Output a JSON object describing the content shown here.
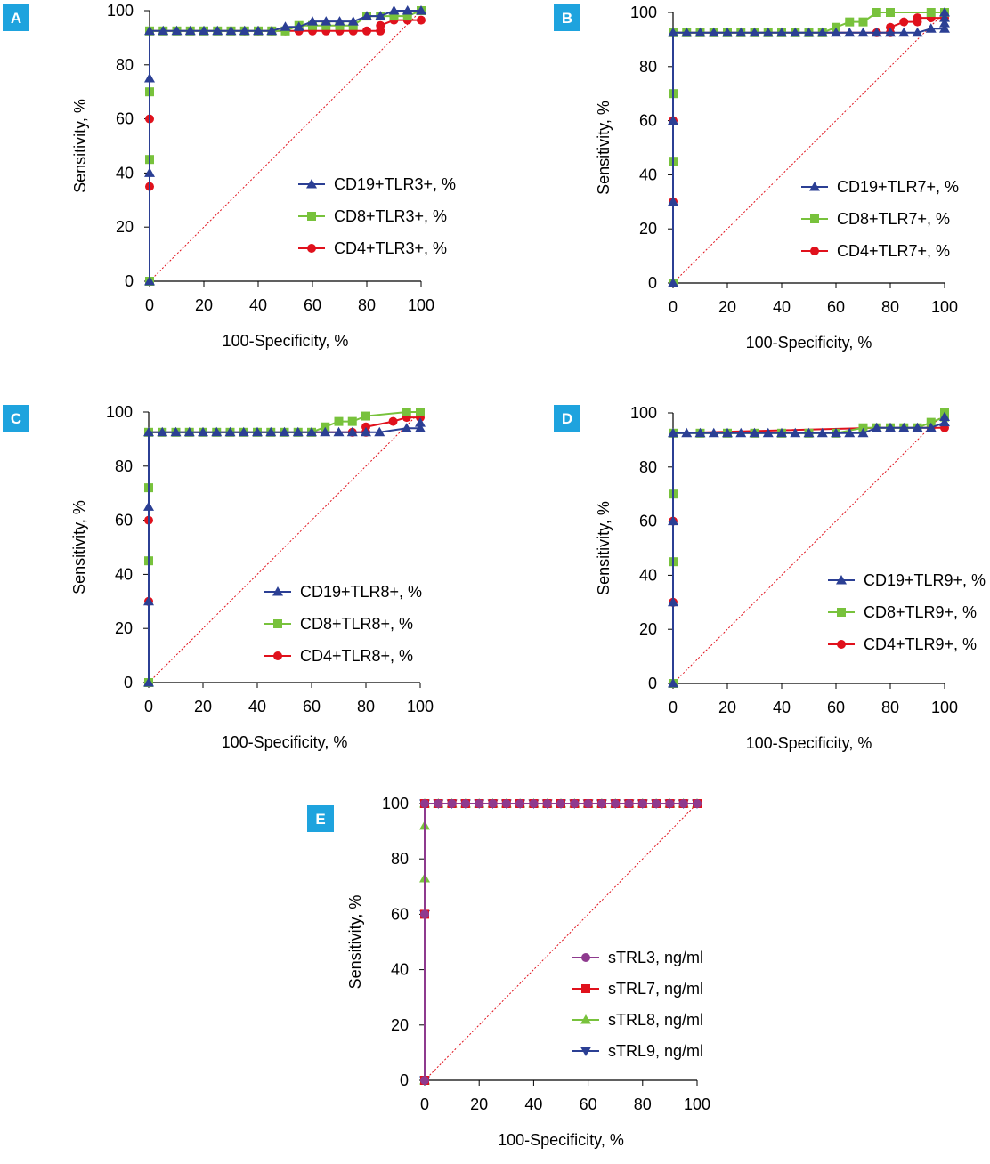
{
  "colors": {
    "blue": "#2b3f94",
    "green": "#78c23c",
    "red": "#e0111c",
    "purple": "#8e3a8e",
    "badge": "#1ea3de",
    "diagonal": "#e0111c"
  },
  "chart_data": [
    {
      "type": "line",
      "panel": "A",
      "xlabel": "100-Specificity, %",
      "ylabel": "Sensitivity, %",
      "xlim": [
        0,
        100
      ],
      "ylim": [
        0,
        100
      ],
      "xticks": [
        0,
        20,
        40,
        60,
        80,
        100
      ],
      "yticks": [
        0,
        20,
        40,
        60,
        80,
        100
      ],
      "legend": "center-right",
      "reference_line": true,
      "series": [
        {
          "name": "CD19+TLR3+, %",
          "color": "blue",
          "marker": "triangle",
          "x": [
            0,
            0,
            0,
            0,
            5,
            10,
            15,
            20,
            25,
            30,
            35,
            40,
            45,
            50,
            55,
            60,
            65,
            70,
            75,
            80,
            85,
            90,
            95,
            100
          ],
          "y": [
            0,
            40,
            75,
            92.5,
            92.5,
            92.5,
            92.5,
            92.5,
            92.5,
            92.5,
            92.5,
            92.5,
            92.5,
            94,
            94,
            96,
            96,
            96,
            96,
            98,
            98,
            100,
            100,
            100
          ]
        },
        {
          "name": "CD8+TLR3+, %",
          "color": "green",
          "marker": "square",
          "x": [
            0,
            0,
            0,
            0,
            5,
            10,
            15,
            20,
            25,
            30,
            35,
            40,
            45,
            50,
            55,
            60,
            65,
            70,
            75,
            80,
            85,
            90,
            95,
            100
          ],
          "y": [
            0,
            45,
            70,
            92.5,
            92.5,
            92.5,
            92.5,
            92.5,
            92.5,
            92.5,
            92.5,
            92.5,
            92.5,
            92.5,
            94.5,
            94.5,
            94.5,
            94.5,
            94.5,
            98,
            98,
            98,
            98,
            100
          ]
        },
        {
          "name": "CD4+TLR3+, %",
          "color": "red",
          "marker": "circle",
          "x": [
            0,
            0,
            0,
            0,
            35,
            40,
            45,
            50,
            55,
            60,
            65,
            70,
            75,
            80,
            85,
            85,
            90,
            95,
            100
          ],
          "y": [
            0,
            35,
            60,
            92.5,
            92.5,
            92.5,
            92.5,
            92.5,
            92.5,
            92.5,
            92.5,
            92.5,
            92.5,
            92.5,
            92.5,
            94.5,
            96.5,
            96.5,
            96.5
          ]
        }
      ],
      "legend_entries": [
        "CD19+TLR3+, %",
        "CD8+TLR3+, %",
        "CD4+TLR3+, %"
      ]
    },
    {
      "type": "line",
      "panel": "B",
      "xlabel": "100-Specificity, %",
      "ylabel": "Sensitivity, %",
      "xlim": [
        0,
        100
      ],
      "ylim": [
        0,
        100
      ],
      "xticks": [
        0,
        20,
        40,
        60,
        80,
        100
      ],
      "yticks": [
        0,
        20,
        40,
        60,
        80,
        100
      ],
      "legend": "center-right",
      "reference_line": true,
      "series": [
        {
          "name": "CD19+TLR7+, %",
          "color": "blue",
          "marker": "triangle",
          "x": [
            0,
            0,
            0,
            0,
            5,
            10,
            15,
            20,
            25,
            30,
            35,
            40,
            45,
            50,
            55,
            60,
            65,
            70,
            75,
            80,
            85,
            90,
            95,
            100,
            100,
            100,
            100
          ],
          "y": [
            0,
            30,
            60,
            92.5,
            92.5,
            92.5,
            92.5,
            92.5,
            92.5,
            92.5,
            92.5,
            92.5,
            92.5,
            92.5,
            92.5,
            92.5,
            92.5,
            92.5,
            92.5,
            92.5,
            92.5,
            92.5,
            94,
            94,
            96,
            98,
            100
          ]
        },
        {
          "name": "CD8+TLR7+, %",
          "color": "green",
          "marker": "square",
          "x": [
            0,
            0,
            0,
            0,
            5,
            10,
            15,
            20,
            25,
            30,
            35,
            40,
            45,
            50,
            55,
            60,
            65,
            70,
            75,
            80,
            95,
            100
          ],
          "y": [
            0,
            45,
            70,
            92.5,
            92.5,
            92.5,
            92.5,
            92.5,
            92.5,
            92.5,
            92.5,
            92.5,
            92.5,
            92.5,
            92.5,
            94.5,
            96.5,
            96.5,
            100,
            100,
            100,
            100
          ]
        },
        {
          "name": "CD4+TLR7+, %",
          "color": "red",
          "marker": "circle",
          "x": [
            0,
            0,
            0,
            0,
            75,
            80,
            80,
            85,
            90,
            90,
            95,
            100
          ],
          "y": [
            0,
            30,
            60,
            92.5,
            92.5,
            92.5,
            94.5,
            96.5,
            96.5,
            98,
            98,
            98
          ]
        }
      ],
      "legend_entries": [
        "CD19+TLR7+, %",
        "CD8+TLR7+, %",
        "CD4+TLR7+, %"
      ]
    },
    {
      "type": "line",
      "panel": "C",
      "xlabel": "100-Specificity, %",
      "ylabel": "Sensitivity, %",
      "xlim": [
        0,
        100
      ],
      "ylim": [
        0,
        100
      ],
      "xticks": [
        0,
        20,
        40,
        60,
        80,
        100
      ],
      "yticks": [
        0,
        20,
        40,
        60,
        80,
        100
      ],
      "legend": "center-right",
      "reference_line": true,
      "series": [
        {
          "name": "CD19+TLR8+, %",
          "color": "blue",
          "marker": "triangle",
          "x": [
            0,
            0,
            0,
            0,
            5,
            10,
            15,
            20,
            25,
            30,
            35,
            40,
            45,
            50,
            55,
            60,
            65,
            70,
            75,
            80,
            85,
            95,
            100,
            100
          ],
          "y": [
            0,
            30,
            65,
            92.5,
            92.5,
            92.5,
            92.5,
            92.5,
            92.5,
            92.5,
            92.5,
            92.5,
            92.5,
            92.5,
            92.5,
            92.5,
            92.5,
            92.5,
            92.5,
            92.5,
            92.5,
            94,
            94,
            96
          ]
        },
        {
          "name": "CD8+TLR8+, %",
          "color": "green",
          "marker": "square",
          "x": [
            0,
            0,
            0,
            0,
            5,
            10,
            15,
            20,
            25,
            30,
            35,
            40,
            45,
            50,
            55,
            60,
            65,
            70,
            75,
            80,
            95,
            100
          ],
          "y": [
            0,
            45,
            72,
            92.5,
            92.5,
            92.5,
            92.5,
            92.5,
            92.5,
            92.5,
            92.5,
            92.5,
            92.5,
            92.5,
            92.5,
            92.5,
            94.5,
            96.5,
            96.5,
            98.5,
            100,
            100
          ]
        },
        {
          "name": "CD4+TLR8+, %",
          "color": "red",
          "marker": "circle",
          "x": [
            0,
            0,
            0,
            0,
            75,
            80,
            80,
            90,
            95,
            100
          ],
          "y": [
            0,
            30,
            60,
            92.5,
            92.5,
            92.5,
            94.5,
            96.5,
            98,
            98
          ]
        }
      ],
      "legend_entries": [
        "CD19+TLR8+, %",
        "CD8+TLR8+, %",
        "CD4+TLR8+, %"
      ]
    },
    {
      "type": "line",
      "panel": "D",
      "xlabel": "100-Specificity, %",
      "ylabel": "Sensitivity, %",
      "xlim": [
        0,
        100
      ],
      "ylim": [
        0,
        100
      ],
      "xticks": [
        0,
        20,
        40,
        60,
        80,
        100
      ],
      "yticks": [
        0,
        20,
        40,
        60,
        80,
        100
      ],
      "legend": "center-right",
      "reference_line": true,
      "series": [
        {
          "name": "CD19+TLR9+, %",
          "color": "blue",
          "marker": "triangle",
          "x": [
            0,
            0,
            0,
            0,
            5,
            10,
            15,
            20,
            25,
            30,
            35,
            40,
            45,
            50,
            55,
            60,
            65,
            70,
            75,
            80,
            85,
            90,
            95,
            100,
            100
          ],
          "y": [
            0,
            30,
            60,
            92.5,
            92.5,
            92.5,
            92.5,
            92.5,
            92.5,
            92.5,
            92.5,
            92.5,
            92.5,
            92.5,
            92.5,
            92.5,
            92.5,
            92.5,
            94.5,
            94.5,
            94.5,
            94.5,
            94.5,
            96.5,
            98.5
          ]
        },
        {
          "name": "CD8+TLR9+, %",
          "color": "green",
          "marker": "square",
          "x": [
            0,
            0,
            0,
            0,
            10,
            20,
            30,
            40,
            50,
            60,
            70,
            75,
            80,
            85,
            90,
            95,
            100,
            100
          ],
          "y": [
            0,
            45,
            70,
            92.5,
            92.5,
            92.5,
            92.5,
            92.5,
            92.5,
            92.5,
            94.5,
            94.5,
            94.5,
            94.5,
            94.5,
            96.5,
            98.5,
            100
          ]
        },
        {
          "name": "CD4+TLR9+, %",
          "color": "red",
          "marker": "circle",
          "x": [
            0,
            0,
            0,
            0,
            75,
            80,
            90,
            95,
            100
          ],
          "y": [
            0,
            30,
            60,
            92.5,
            94.5,
            94.5,
            94.5,
            94.5,
            94.5
          ]
        }
      ],
      "legend_entries": [
        "CD19+TLR9+, %",
        "CD8+TLR9+, %",
        "CD4+TLR9+, %"
      ]
    },
    {
      "type": "line",
      "panel": "E",
      "xlabel": "100-Specificity, %",
      "ylabel": "Sensitivity, %",
      "xlim": [
        0,
        100
      ],
      "ylim": [
        0,
        100
      ],
      "xticks": [
        0,
        20,
        40,
        60,
        80,
        100
      ],
      "yticks": [
        0,
        20,
        40,
        60,
        80,
        100
      ],
      "legend": "center-right",
      "reference_line": true,
      "series": [
        {
          "name": "sTRL3, ng/ml",
          "color": "purple",
          "marker": "circle",
          "x": [
            0,
            0,
            0,
            5,
            10,
            15,
            20,
            25,
            30,
            35,
            40,
            45,
            50,
            55,
            60,
            65,
            70,
            75,
            80,
            85,
            90,
            95,
            100
          ],
          "y": [
            0,
            60,
            100,
            100,
            100,
            100,
            100,
            100,
            100,
            100,
            100,
            100,
            100,
            100,
            100,
            100,
            100,
            100,
            100,
            100,
            100,
            100,
            100
          ]
        },
        {
          "name": "sTRL7, ng/ml",
          "color": "red",
          "marker": "square",
          "x": [
            0,
            0,
            0,
            5,
            10,
            15,
            20,
            25,
            30,
            35,
            40,
            45,
            50,
            55,
            60,
            65,
            70,
            75,
            80,
            85,
            90,
            95,
            100
          ],
          "y": [
            0,
            60,
            100,
            100,
            100,
            100,
            100,
            100,
            100,
            100,
            100,
            100,
            100,
            100,
            100,
            100,
            100,
            100,
            100,
            100,
            100,
            100,
            100
          ]
        },
        {
          "name": "sTRL8, ng/ml",
          "color": "green",
          "marker": "triangle",
          "x": [
            0,
            0,
            0,
            0,
            5,
            10,
            15,
            20,
            25,
            30,
            35,
            40,
            45,
            50,
            55,
            60,
            65,
            70,
            75,
            80,
            85,
            90,
            95,
            100
          ],
          "y": [
            0,
            73,
            92,
            100,
            100,
            100,
            100,
            100,
            100,
            100,
            100,
            100,
            100,
            100,
            100,
            100,
            100,
            100,
            100,
            100,
            100,
            100,
            100,
            100
          ]
        },
        {
          "name": "sTRL9, ng/ml",
          "color": "blue",
          "marker": "triangle-down",
          "x": [
            0,
            0,
            0,
            5,
            10,
            15,
            20,
            25,
            30,
            35,
            40,
            45,
            50,
            55,
            60,
            65,
            70,
            75,
            80,
            85,
            90,
            95,
            100
          ],
          "y": [
            0,
            60,
            100,
            100,
            100,
            100,
            100,
            100,
            100,
            100,
            100,
            100,
            100,
            100,
            100,
            100,
            100,
            100,
            100,
            100,
            100,
            100,
            100
          ]
        }
      ],
      "legend_entries": [
        "sTRL3, ng/ml",
        "sTRL7, ng/ml",
        "sTRL8, ng/ml",
        "sTRL9, ng/ml"
      ]
    }
  ]
}
